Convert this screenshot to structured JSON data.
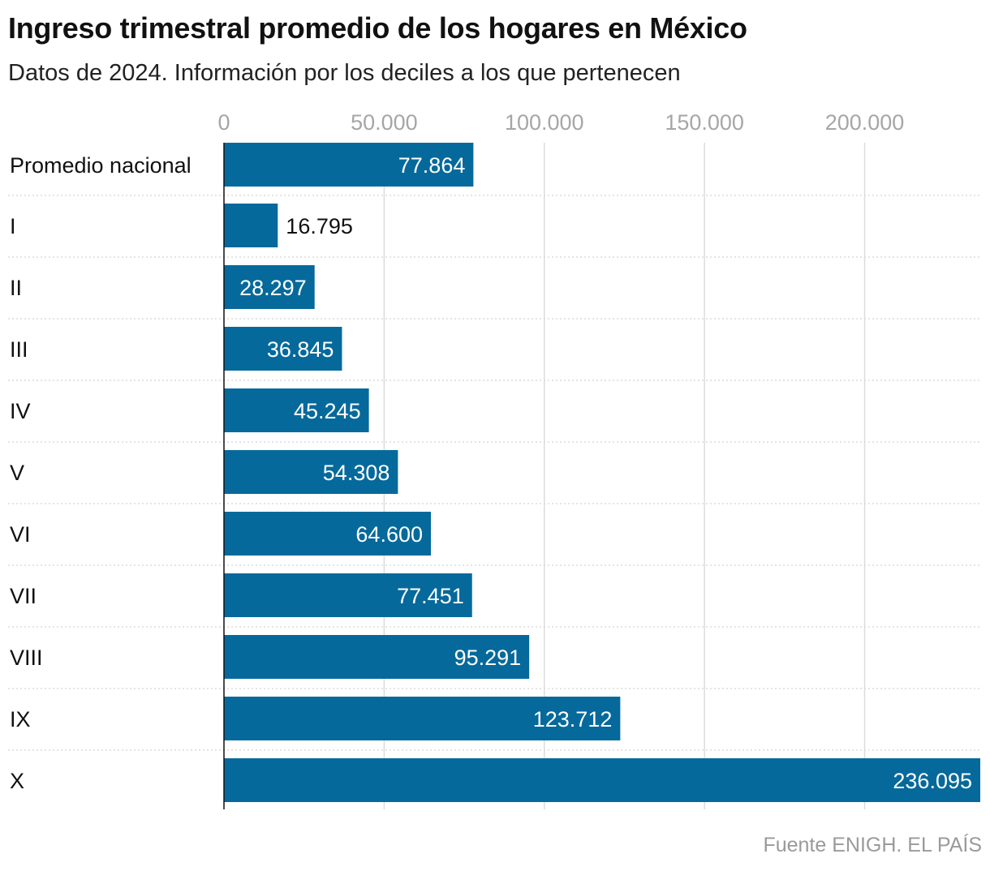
{
  "title": "Ingreso trimestral promedio de los hogares en México",
  "subtitle": "Datos de 2024. Información por los deciles a los que pertenecen",
  "source": "Fuente ENIGH. EL PAÍS",
  "colors": {
    "bar": "#06699b",
    "grid": "#dcdcdc",
    "axis": "#111111",
    "label_inside": "#ffffff",
    "label_outside": "#111111"
  },
  "chart_data": {
    "type": "bar",
    "orientation": "horizontal",
    "title": "Ingreso trimestral promedio de los hogares en México",
    "subtitle": "Datos de 2024. Información por los deciles a los que pertenecen",
    "xlabel": "",
    "ylabel": "",
    "xlim": [
      0,
      236095
    ],
    "xticks": [
      0,
      50000,
      100000,
      150000,
      200000
    ],
    "xtick_labels": [
      "0",
      "50.000",
      "100.000",
      "150.000",
      "200.000"
    ],
    "categories": [
      "Promedio nacional",
      "I",
      "II",
      "III",
      "IV",
      "V",
      "VI",
      "VII",
      "VIII",
      "IX",
      "X"
    ],
    "values": [
      77864,
      16795,
      28297,
      36845,
      45245,
      54308,
      64600,
      77451,
      95291,
      123712,
      236095
    ],
    "value_labels": [
      "77.864",
      "16.795",
      "28.297",
      "36.845",
      "45.245",
      "54.308",
      "64.600",
      "77.451",
      "95.291",
      "123.712",
      "236.095"
    ],
    "grid": true,
    "legend": "none"
  }
}
